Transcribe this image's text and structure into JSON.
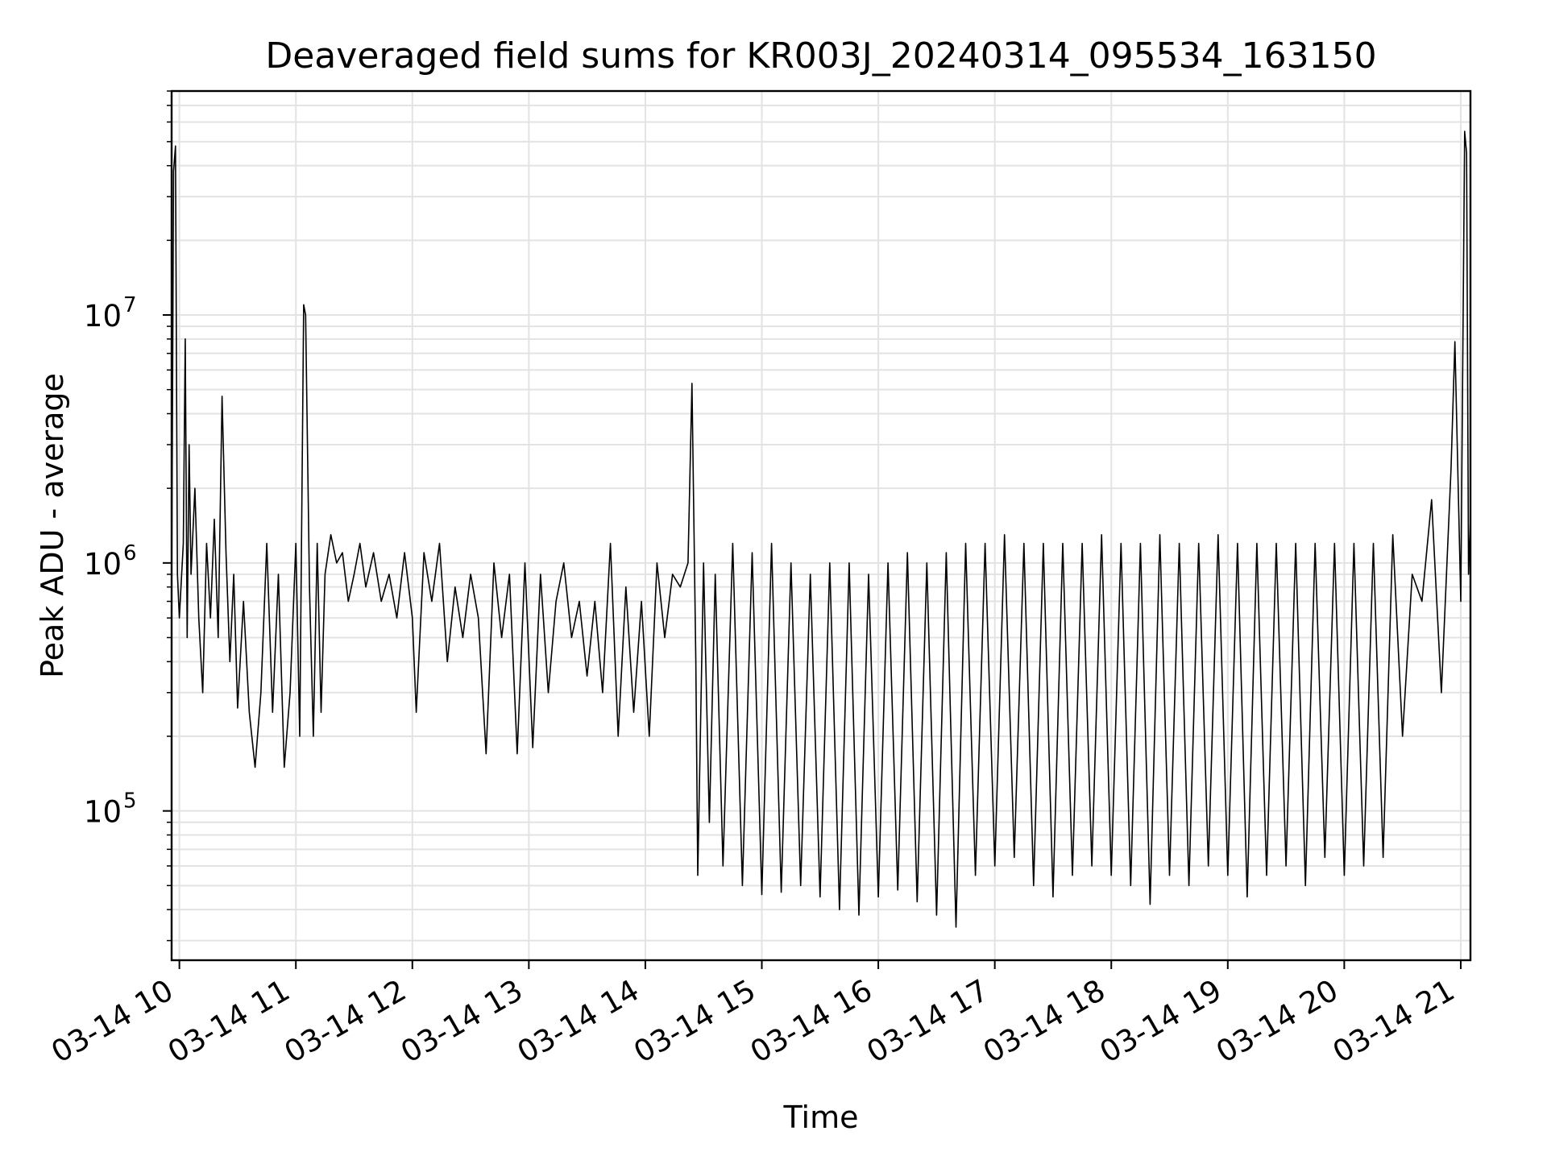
{
  "chart_data": {
    "type": "line",
    "title": "Deaveraged field sums for KR003J_20240314_095534_163150",
    "xlabel": "Time",
    "ylabel": "Peak ADU - average",
    "yscale": "log",
    "ylim": [
      25000,
      80000000
    ],
    "xlim": [
      "03-14 09:56",
      "03-14 21:05"
    ],
    "x_ticks": [
      "03-14 10",
      "03-14 11",
      "03-14 12",
      "03-14 13",
      "03-14 14",
      "03-14 15",
      "03-14 16",
      "03-14 17",
      "03-14 18",
      "03-14 19",
      "03-14 20",
      "03-14 21"
    ],
    "y_ticks": [
      {
        "base": "10",
        "exp": "5",
        "value": 100000
      },
      {
        "base": "10",
        "exp": "6",
        "value": 1000000
      },
      {
        "base": "10",
        "exp": "7",
        "value": 10000000
      }
    ],
    "grid": true,
    "line_color": "#000000",
    "series": [
      {
        "values_note_excluded": true,
        "points": [
          [
            "09:56",
            700000
          ],
          [
            "09:57",
            38000000
          ],
          [
            "09:58",
            48000000
          ],
          [
            "09:59",
            900000
          ],
          [
            "10:00",
            600000
          ],
          [
            "10:02",
            1200000
          ],
          [
            "10:03",
            8000000
          ],
          [
            "10:04",
            500000
          ],
          [
            "10:05",
            3000000
          ],
          [
            "10:06",
            900000
          ],
          [
            "10:08",
            2000000
          ],
          [
            "10:10",
            600000
          ],
          [
            "10:12",
            300000
          ],
          [
            "10:14",
            1200000
          ],
          [
            "10:16",
            600000
          ],
          [
            "10:18",
            1500000
          ],
          [
            "10:20",
            500000
          ],
          [
            "10:22",
            4700000
          ],
          [
            "10:24",
            1100000
          ],
          [
            "10:26",
            400000
          ],
          [
            "10:28",
            900000
          ],
          [
            "10:30",
            260000
          ],
          [
            "10:33",
            700000
          ],
          [
            "10:36",
            250000
          ],
          [
            "10:39",
            150000
          ],
          [
            "10:42",
            300000
          ],
          [
            "10:45",
            1200000
          ],
          [
            "10:48",
            250000
          ],
          [
            "10:51",
            900000
          ],
          [
            "10:54",
            150000
          ],
          [
            "10:57",
            300000
          ],
          [
            "11:00",
            1200000
          ],
          [
            "11:02",
            200000
          ],
          [
            "11:04",
            11000000
          ],
          [
            "11:05",
            10000000
          ],
          [
            "11:07",
            800000
          ],
          [
            "11:09",
            200000
          ],
          [
            "11:11",
            1200000
          ],
          [
            "11:13",
            250000
          ],
          [
            "11:15",
            900000
          ],
          [
            "11:18",
            1300000
          ],
          [
            "11:21",
            1000000
          ],
          [
            "11:24",
            1100000
          ],
          [
            "11:27",
            700000
          ],
          [
            "11:30",
            900000
          ],
          [
            "11:33",
            1200000
          ],
          [
            "11:36",
            800000
          ],
          [
            "11:40",
            1100000
          ],
          [
            "11:44",
            700000
          ],
          [
            "11:48",
            900000
          ],
          [
            "11:52",
            600000
          ],
          [
            "11:56",
            1100000
          ],
          [
            "12:00",
            600000
          ],
          [
            "12:02",
            250000
          ],
          [
            "12:06",
            1100000
          ],
          [
            "12:10",
            700000
          ],
          [
            "12:14",
            1200000
          ],
          [
            "12:18",
            400000
          ],
          [
            "12:22",
            800000
          ],
          [
            "12:26",
            500000
          ],
          [
            "12:30",
            900000
          ],
          [
            "12:34",
            600000
          ],
          [
            "12:38",
            170000
          ],
          [
            "12:42",
            1000000
          ],
          [
            "12:46",
            500000
          ],
          [
            "12:50",
            900000
          ],
          [
            "12:54",
            170000
          ],
          [
            "12:58",
            1000000
          ],
          [
            "13:02",
            180000
          ],
          [
            "13:06",
            900000
          ],
          [
            "13:10",
            300000
          ],
          [
            "13:14",
            700000
          ],
          [
            "13:18",
            1000000
          ],
          [
            "13:22",
            500000
          ],
          [
            "13:26",
            700000
          ],
          [
            "13:30",
            350000
          ],
          [
            "13:34",
            700000
          ],
          [
            "13:38",
            300000
          ],
          [
            "13:42",
            1200000
          ],
          [
            "13:46",
            200000
          ],
          [
            "13:50",
            800000
          ],
          [
            "13:54",
            250000
          ],
          [
            "13:58",
            700000
          ],
          [
            "14:02",
            200000
          ],
          [
            "14:06",
            1000000
          ],
          [
            "14:10",
            500000
          ],
          [
            "14:14",
            900000
          ],
          [
            "14:18",
            800000
          ],
          [
            "14:22",
            1000000
          ],
          [
            "14:24",
            5300000
          ],
          [
            "14:26",
            400000
          ],
          [
            "14:27",
            55000
          ],
          [
            "14:30",
            1000000
          ],
          [
            "14:33",
            90000
          ],
          [
            "14:36",
            900000
          ],
          [
            "14:40",
            60000
          ],
          [
            "14:45",
            1200000
          ],
          [
            "14:50",
            50000
          ],
          [
            "14:55",
            1100000
          ],
          [
            "15:00",
            46000
          ],
          [
            "15:05",
            1200000
          ],
          [
            "15:10",
            47000
          ],
          [
            "15:15",
            1000000
          ],
          [
            "15:20",
            50000
          ],
          [
            "15:25",
            900000
          ],
          [
            "15:30",
            45000
          ],
          [
            "15:35",
            1000000
          ],
          [
            "15:40",
            40000
          ],
          [
            "15:45",
            1000000
          ],
          [
            "15:50",
            38000
          ],
          [
            "15:55",
            900000
          ],
          [
            "16:00",
            45000
          ],
          [
            "16:05",
            1000000
          ],
          [
            "16:10",
            48000
          ],
          [
            "16:15",
            1100000
          ],
          [
            "16:20",
            43000
          ],
          [
            "16:25",
            1000000
          ],
          [
            "16:30",
            38000
          ],
          [
            "16:35",
            1100000
          ],
          [
            "16:40",
            34000
          ],
          [
            "16:45",
            1200000
          ],
          [
            "16:50",
            55000
          ],
          [
            "16:55",
            1200000
          ],
          [
            "17:00",
            60000
          ],
          [
            "17:05",
            1300000
          ],
          [
            "17:10",
            65000
          ],
          [
            "17:15",
            1200000
          ],
          [
            "17:20",
            50000
          ],
          [
            "17:25",
            1200000
          ],
          [
            "17:30",
            45000
          ],
          [
            "17:35",
            1200000
          ],
          [
            "17:40",
            55000
          ],
          [
            "17:45",
            1200000
          ],
          [
            "17:50",
            60000
          ],
          [
            "17:55",
            1300000
          ],
          [
            "18:00",
            55000
          ],
          [
            "18:05",
            1200000
          ],
          [
            "18:10",
            50000
          ],
          [
            "18:15",
            1200000
          ],
          [
            "18:20",
            42000
          ],
          [
            "18:25",
            1300000
          ],
          [
            "18:30",
            55000
          ],
          [
            "18:35",
            1200000
          ],
          [
            "18:40",
            50000
          ],
          [
            "18:45",
            1200000
          ],
          [
            "18:50",
            60000
          ],
          [
            "18:55",
            1300000
          ],
          [
            "19:00",
            55000
          ],
          [
            "19:05",
            1200000
          ],
          [
            "19:10",
            45000
          ],
          [
            "19:15",
            1200000
          ],
          [
            "19:20",
            55000
          ],
          [
            "19:25",
            1200000
          ],
          [
            "19:30",
            60000
          ],
          [
            "19:35",
            1200000
          ],
          [
            "19:40",
            50000
          ],
          [
            "19:45",
            1200000
          ],
          [
            "19:50",
            65000
          ],
          [
            "19:55",
            1200000
          ],
          [
            "20:00",
            55000
          ],
          [
            "20:05",
            1200000
          ],
          [
            "20:10",
            60000
          ],
          [
            "20:15",
            1200000
          ],
          [
            "20:20",
            65000
          ],
          [
            "20:25",
            1300000
          ],
          [
            "20:30",
            200000
          ],
          [
            "20:35",
            900000
          ],
          [
            "20:40",
            700000
          ],
          [
            "20:45",
            1800000
          ],
          [
            "20:50",
            300000
          ],
          [
            "20:55",
            2400000
          ],
          [
            "20:57",
            7800000
          ],
          [
            "21:00",
            700000
          ],
          [
            "21:02",
            55000000
          ],
          [
            "21:03",
            45000000
          ],
          [
            "21:04",
            900000
          ],
          [
            "21:05",
            1500000
          ]
        ]
      }
    ]
  }
}
